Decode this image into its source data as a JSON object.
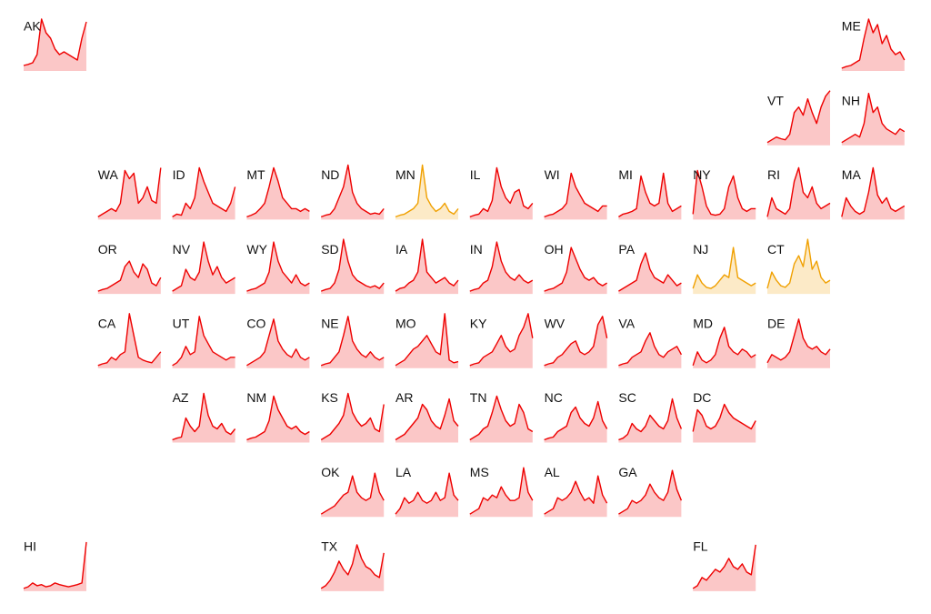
{
  "chart_data": [
    {
      "type": "area",
      "title": "AK",
      "color": "#ee0000",
      "ylim": [
        0,
        100
      ],
      "values": [
        10,
        12,
        15,
        30,
        95,
        70,
        60,
        40,
        30,
        35,
        30,
        25,
        20,
        60,
        90
      ]
    },
    {
      "type": "area",
      "title": "ME",
      "color": "#ee0000",
      "ylim": [
        0,
        100
      ],
      "values": [
        5,
        8,
        10,
        15,
        20,
        60,
        95,
        70,
        85,
        50,
        65,
        40,
        30,
        35,
        20
      ]
    },
    {
      "type": "area",
      "title": "VT",
      "color": "#ee0000",
      "ylim": [
        0,
        100
      ],
      "values": [
        5,
        10,
        15,
        12,
        10,
        20,
        60,
        70,
        55,
        85,
        60,
        40,
        70,
        90,
        100
      ]
    },
    {
      "type": "area",
      "title": "NH",
      "color": "#ee0000",
      "ylim": [
        0,
        100
      ],
      "values": [
        5,
        10,
        15,
        20,
        15,
        40,
        95,
        60,
        70,
        40,
        30,
        25,
        20,
        30,
        25
      ]
    },
    {
      "type": "area",
      "title": "WA",
      "color": "#ee0000",
      "ylim": [
        0,
        100
      ],
      "values": [
        5,
        10,
        15,
        20,
        15,
        30,
        90,
        75,
        85,
        30,
        40,
        60,
        35,
        30,
        95
      ]
    },
    {
      "type": "area",
      "title": "ID",
      "color": "#ee0000",
      "ylim": [
        0,
        100
      ],
      "values": [
        5,
        10,
        8,
        30,
        20,
        40,
        95,
        70,
        50,
        30,
        25,
        20,
        15,
        30,
        60
      ]
    },
    {
      "type": "area",
      "title": "MT",
      "color": "#ee0000",
      "ylim": [
        0,
        100
      ],
      "values": [
        5,
        8,
        12,
        20,
        30,
        60,
        95,
        70,
        40,
        30,
        20,
        20,
        15,
        20,
        15
      ]
    },
    {
      "type": "area",
      "title": "ND",
      "color": "#ee0000",
      "ylim": [
        0,
        100
      ],
      "values": [
        5,
        8,
        10,
        20,
        40,
        60,
        100,
        50,
        30,
        20,
        15,
        10,
        12,
        10,
        20
      ]
    },
    {
      "type": "area",
      "title": "MN",
      "color": "#f0a000",
      "ylim": [
        0,
        100
      ],
      "values": [
        5,
        8,
        10,
        15,
        20,
        30,
        100,
        40,
        25,
        15,
        20,
        30,
        15,
        10,
        20
      ]
    },
    {
      "type": "area",
      "title": "IL",
      "color": "#ee0000",
      "ylim": [
        0,
        100
      ],
      "values": [
        5,
        8,
        10,
        20,
        15,
        35,
        95,
        60,
        40,
        30,
        50,
        55,
        25,
        20,
        30
      ]
    },
    {
      "type": "area",
      "title": "WI",
      "color": "#ee0000",
      "ylim": [
        0,
        100
      ],
      "values": [
        5,
        8,
        10,
        15,
        20,
        30,
        85,
        60,
        45,
        30,
        25,
        20,
        15,
        25,
        25
      ]
    },
    {
      "type": "area",
      "title": "MI",
      "color": "#ee0000",
      "ylim": [
        0,
        100
      ],
      "values": [
        5,
        10,
        12,
        15,
        20,
        80,
        50,
        30,
        25,
        30,
        85,
        30,
        15,
        20,
        25
      ]
    },
    {
      "type": "area",
      "title": "NY",
      "color": "#ee0000",
      "ylim": [
        0,
        100
      ],
      "values": [
        10,
        90,
        60,
        25,
        10,
        8,
        10,
        20,
        60,
        80,
        40,
        20,
        15,
        20,
        20
      ]
    },
    {
      "type": "area",
      "title": "RI",
      "color": "#ee0000",
      "ylim": [
        0,
        100
      ],
      "values": [
        5,
        40,
        20,
        15,
        10,
        20,
        70,
        95,
        50,
        40,
        60,
        30,
        20,
        25,
        30
      ]
    },
    {
      "type": "area",
      "title": "MA",
      "color": "#ee0000",
      "ylim": [
        0,
        100
      ],
      "values": [
        5,
        40,
        25,
        15,
        10,
        15,
        50,
        95,
        45,
        30,
        40,
        20,
        15,
        20,
        25
      ]
    },
    {
      "type": "area",
      "title": "OR",
      "color": "#ee0000",
      "ylim": [
        0,
        100
      ],
      "values": [
        5,
        8,
        10,
        15,
        20,
        25,
        50,
        60,
        40,
        30,
        55,
        45,
        20,
        15,
        30
      ]
    },
    {
      "type": "area",
      "title": "NV",
      "color": "#ee0000",
      "ylim": [
        0,
        100
      ],
      "values": [
        5,
        10,
        15,
        45,
        30,
        25,
        40,
        95,
        60,
        35,
        50,
        30,
        20,
        25,
        30
      ]
    },
    {
      "type": "area",
      "title": "WY",
      "color": "#ee0000",
      "ylim": [
        0,
        100
      ],
      "values": [
        5,
        8,
        10,
        15,
        20,
        40,
        95,
        60,
        40,
        30,
        20,
        35,
        20,
        15,
        20
      ]
    },
    {
      "type": "area",
      "title": "SD",
      "color": "#ee0000",
      "ylim": [
        0,
        100
      ],
      "values": [
        5,
        8,
        10,
        20,
        45,
        100,
        60,
        35,
        25,
        20,
        15,
        12,
        15,
        10,
        20
      ]
    },
    {
      "type": "area",
      "title": "IA",
      "color": "#ee0000",
      "ylim": [
        0,
        100
      ],
      "values": [
        5,
        10,
        12,
        20,
        25,
        40,
        100,
        40,
        30,
        20,
        25,
        30,
        20,
        15,
        25
      ]
    },
    {
      "type": "area",
      "title": "IN",
      "color": "#ee0000",
      "ylim": [
        0,
        100
      ],
      "values": [
        5,
        8,
        10,
        20,
        25,
        50,
        95,
        60,
        40,
        30,
        25,
        35,
        25,
        20,
        25
      ]
    },
    {
      "type": "area",
      "title": "OH",
      "color": "#ee0000",
      "ylim": [
        0,
        100
      ],
      "values": [
        5,
        8,
        10,
        15,
        20,
        40,
        85,
        65,
        45,
        30,
        25,
        30,
        20,
        15,
        20
      ]
    },
    {
      "type": "area",
      "title": "PA",
      "color": "#ee0000",
      "ylim": [
        0,
        100
      ],
      "values": [
        5,
        10,
        15,
        20,
        25,
        55,
        75,
        45,
        30,
        25,
        20,
        35,
        25,
        15,
        20
      ]
    },
    {
      "type": "area",
      "title": "NJ",
      "color": "#f0a000",
      "ylim": [
        0,
        100
      ],
      "values": [
        10,
        35,
        20,
        12,
        10,
        15,
        25,
        35,
        30,
        85,
        30,
        25,
        20,
        15,
        20
      ]
    },
    {
      "type": "area",
      "title": "CT",
      "color": "#f0a000",
      "ylim": [
        0,
        100
      ],
      "values": [
        10,
        40,
        25,
        15,
        12,
        20,
        55,
        70,
        50,
        100,
        45,
        60,
        30,
        20,
        25
      ]
    },
    {
      "type": "area",
      "title": "CA",
      "color": "#ee0000",
      "ylim": [
        0,
        100
      ],
      "values": [
        5,
        8,
        10,
        20,
        15,
        25,
        30,
        100,
        60,
        20,
        15,
        12,
        10,
        20,
        30
      ]
    },
    {
      "type": "area",
      "title": "UT",
      "color": "#ee0000",
      "ylim": [
        0,
        100
      ],
      "values": [
        5,
        10,
        20,
        40,
        25,
        30,
        95,
        60,
        45,
        30,
        25,
        20,
        15,
        20,
        20
      ]
    },
    {
      "type": "area",
      "title": "CO",
      "color": "#ee0000",
      "ylim": [
        0,
        100
      ],
      "values": [
        5,
        10,
        15,
        20,
        30,
        60,
        90,
        50,
        35,
        25,
        20,
        35,
        20,
        15,
        20
      ]
    },
    {
      "type": "area",
      "title": "NE",
      "color": "#ee0000",
      "ylim": [
        0,
        100
      ],
      "values": [
        5,
        8,
        10,
        20,
        30,
        60,
        95,
        50,
        35,
        25,
        20,
        30,
        20,
        15,
        20
      ]
    },
    {
      "type": "area",
      "title": "MO",
      "color": "#ee0000",
      "ylim": [
        0,
        100
      ],
      "values": [
        5,
        10,
        15,
        25,
        35,
        40,
        50,
        60,
        45,
        30,
        25,
        100,
        15,
        10,
        12
      ]
    },
    {
      "type": "area",
      "title": "KY",
      "color": "#ee0000",
      "ylim": [
        0,
        100
      ],
      "values": [
        5,
        8,
        10,
        20,
        25,
        30,
        45,
        60,
        40,
        30,
        35,
        60,
        75,
        100,
        55
      ]
    },
    {
      "type": "area",
      "title": "WV",
      "color": "#ee0000",
      "ylim": [
        0,
        100
      ],
      "values": [
        5,
        8,
        10,
        20,
        25,
        35,
        45,
        50,
        30,
        25,
        30,
        40,
        80,
        95,
        55
      ]
    },
    {
      "type": "area",
      "title": "VA",
      "color": "#ee0000",
      "ylim": [
        0,
        100
      ],
      "values": [
        5,
        8,
        10,
        20,
        25,
        30,
        50,
        65,
        40,
        25,
        20,
        30,
        35,
        40,
        25
      ]
    },
    {
      "type": "area",
      "title": "MD",
      "color": "#ee0000",
      "ylim": [
        0,
        100
      ],
      "values": [
        5,
        30,
        15,
        10,
        15,
        25,
        55,
        75,
        40,
        30,
        25,
        35,
        30,
        20,
        25
      ]
    },
    {
      "type": "area",
      "title": "DE",
      "color": "#ee0000",
      "ylim": [
        0,
        100
      ],
      "values": [
        10,
        25,
        20,
        15,
        20,
        30,
        60,
        90,
        55,
        40,
        35,
        40,
        30,
        25,
        35
      ]
    },
    {
      "type": "area",
      "title": "AZ",
      "color": "#ee0000",
      "ylim": [
        0,
        100
      ],
      "values": [
        5,
        8,
        10,
        45,
        30,
        20,
        30,
        90,
        50,
        30,
        25,
        35,
        20,
        15,
        25
      ]
    },
    {
      "type": "area",
      "title": "NM",
      "color": "#ee0000",
      "ylim": [
        0,
        100
      ],
      "values": [
        5,
        8,
        10,
        15,
        20,
        40,
        85,
        60,
        45,
        30,
        25,
        30,
        20,
        15,
        20
      ]
    },
    {
      "type": "area",
      "title": "KS",
      "color": "#ee0000",
      "ylim": [
        0,
        100
      ],
      "values": [
        5,
        10,
        15,
        25,
        35,
        50,
        90,
        55,
        40,
        30,
        35,
        45,
        25,
        20,
        70
      ]
    },
    {
      "type": "area",
      "title": "AR",
      "color": "#ee0000",
      "ylim": [
        0,
        100
      ],
      "values": [
        5,
        10,
        15,
        25,
        35,
        45,
        70,
        60,
        40,
        30,
        25,
        50,
        80,
        40,
        30
      ]
    },
    {
      "type": "area",
      "title": "TN",
      "color": "#ee0000",
      "ylim": [
        0,
        100
      ],
      "values": [
        5,
        10,
        15,
        25,
        30,
        55,
        85,
        60,
        40,
        30,
        35,
        70,
        55,
        25,
        20
      ]
    },
    {
      "type": "area",
      "title": "NC",
      "color": "#ee0000",
      "ylim": [
        0,
        100
      ],
      "values": [
        5,
        8,
        10,
        20,
        25,
        30,
        55,
        65,
        45,
        35,
        30,
        45,
        75,
        40,
        25
      ]
    },
    {
      "type": "area",
      "title": "SC",
      "color": "#ee0000",
      "ylim": [
        0,
        100
      ],
      "values": [
        5,
        8,
        15,
        35,
        25,
        20,
        30,
        50,
        40,
        30,
        25,
        40,
        80,
        45,
        25
      ]
    },
    {
      "type": "area",
      "title": "DC",
      "color": "#ee0000",
      "ylim": [
        0,
        100
      ],
      "values": [
        20,
        60,
        50,
        30,
        25,
        30,
        45,
        70,
        55,
        45,
        40,
        35,
        30,
        25,
        40
      ]
    },
    {
      "type": "area",
      "title": "OK",
      "color": "#ee0000",
      "ylim": [
        0,
        100
      ],
      "values": [
        5,
        10,
        15,
        20,
        30,
        40,
        45,
        75,
        45,
        35,
        30,
        35,
        80,
        45,
        30
      ]
    },
    {
      "type": "area",
      "title": "LA",
      "color": "#ee0000",
      "ylim": [
        0,
        100
      ],
      "values": [
        5,
        15,
        35,
        25,
        30,
        45,
        30,
        25,
        30,
        45,
        30,
        35,
        80,
        40,
        30
      ]
    },
    {
      "type": "area",
      "title": "MS",
      "color": "#ee0000",
      "ylim": [
        0,
        100
      ],
      "values": [
        5,
        10,
        15,
        35,
        30,
        40,
        35,
        55,
        40,
        30,
        30,
        35,
        90,
        45,
        30
      ]
    },
    {
      "type": "area",
      "title": "AL",
      "color": "#ee0000",
      "ylim": [
        0,
        100
      ],
      "values": [
        5,
        10,
        15,
        35,
        30,
        35,
        45,
        65,
        45,
        30,
        35,
        25,
        75,
        40,
        25
      ]
    },
    {
      "type": "area",
      "title": "GA",
      "color": "#ee0000",
      "ylim": [
        0,
        100
      ],
      "values": [
        5,
        10,
        15,
        30,
        25,
        30,
        40,
        60,
        45,
        35,
        30,
        45,
        85,
        50,
        30
      ]
    },
    {
      "type": "area",
      "title": "HI",
      "color": "#ee0000",
      "ylim": [
        0,
        100
      ],
      "values": [
        5,
        8,
        15,
        10,
        12,
        8,
        10,
        15,
        12,
        10,
        8,
        10,
        12,
        15,
        90
      ]
    },
    {
      "type": "area",
      "title": "TX",
      "color": "#ee0000",
      "ylim": [
        0,
        100
      ],
      "values": [
        5,
        10,
        20,
        35,
        55,
        40,
        30,
        50,
        85,
        60,
        45,
        40,
        30,
        25,
        70
      ]
    },
    {
      "type": "area",
      "title": "FL",
      "color": "#ee0000",
      "ylim": [
        0,
        100
      ],
      "values": [
        5,
        10,
        25,
        20,
        30,
        40,
        35,
        45,
        60,
        45,
        40,
        50,
        35,
        30,
        85
      ]
    }
  ]
}
